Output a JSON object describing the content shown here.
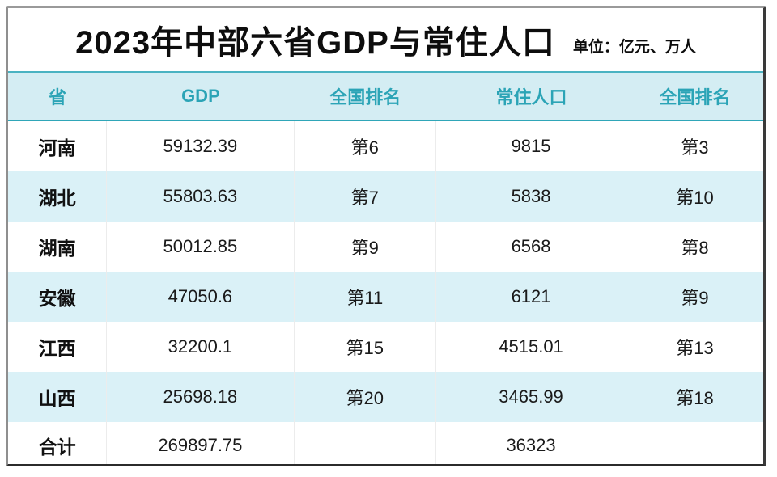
{
  "chart_data": {
    "type": "table",
    "title": "2023年中部六省GDP与常住人口",
    "unit_note": "单位：亿元、万人",
    "columns": [
      "省",
      "GDP",
      "全国排名",
      "常住人口",
      "全国排名"
    ],
    "rows": [
      {
        "province": "河南",
        "gdp": "59132.39",
        "gdp_rank": "第6",
        "population": "9815",
        "pop_rank": "第3"
      },
      {
        "province": "湖北",
        "gdp": "55803.63",
        "gdp_rank": "第7",
        "population": "5838",
        "pop_rank": "第10"
      },
      {
        "province": "湖南",
        "gdp": "50012.85",
        "gdp_rank": "第9",
        "population": "6568",
        "pop_rank": "第8"
      },
      {
        "province": "安徽",
        "gdp": "47050.6",
        "gdp_rank": "第11",
        "population": "6121",
        "pop_rank": "第9"
      },
      {
        "province": "江西",
        "gdp": "32200.1",
        "gdp_rank": "第15",
        "population": "4515.01",
        "pop_rank": "第13"
      },
      {
        "province": "山西",
        "gdp": "25698.18",
        "gdp_rank": "第20",
        "population": "3465.99",
        "pop_rank": "第18"
      }
    ],
    "total_row": {
      "province": "合计",
      "gdp": "269897.75",
      "gdp_rank": "",
      "population": "36323",
      "pop_rank": ""
    },
    "layout": {
      "legend": "none",
      "grid": "alternating-row-shading"
    }
  },
  "colors": {
    "accent_teal": "#2fa6b8",
    "header_background": "#d4edf3",
    "alt_row_background": "#daf1f7",
    "title_text": "#0d0d0d",
    "card_border_dark": "#2b2b2b",
    "card_border_light": "#9a9a9a"
  }
}
